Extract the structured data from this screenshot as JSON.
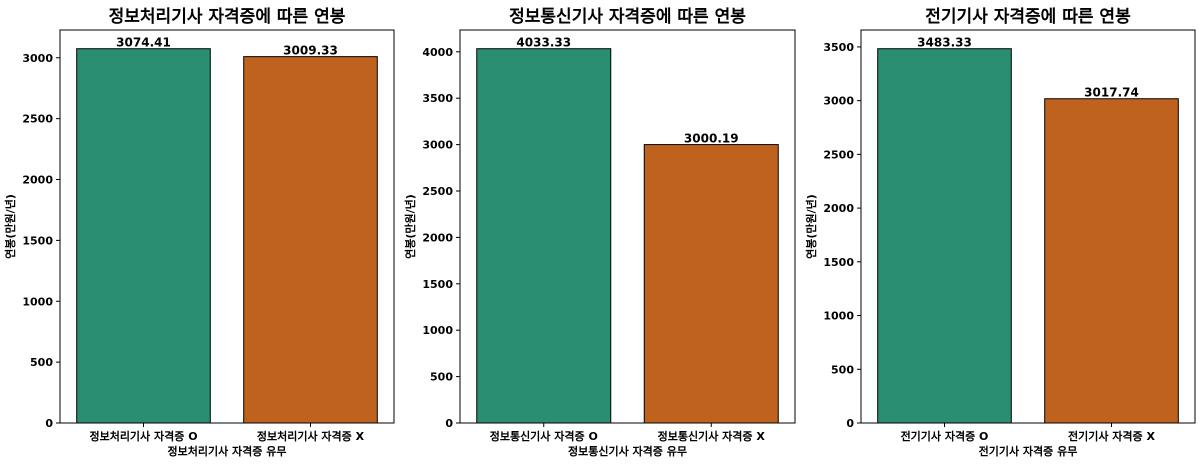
{
  "chart_data": [
    {
      "type": "bar",
      "title": "정보처리기사 자격증에 따른 연봉",
      "xlabel": "정보처리기사 자격증 유무",
      "ylabel": "연봉(만원/년)",
      "categories": [
        "정보처리기사 자격증 O",
        "정보처리기사 자격증 X"
      ],
      "values": [
        3074.41,
        3009.33
      ],
      "value_labels": [
        "3074.41",
        "3009.33"
      ],
      "colors": [
        "#2a8f72",
        "#bf621e"
      ],
      "ylim": [
        0,
        3228.13
      ],
      "yticks": [
        0,
        500,
        1000,
        1500,
        2000,
        2500,
        3000
      ],
      "grid": false
    },
    {
      "type": "bar",
      "title": "정보통신기사 자격증에 따른 연봉",
      "xlabel": "정보통신기사 자격증 유무",
      "ylabel": "연봉(만원/년)",
      "categories": [
        "정보통신기사 자격증 O",
        "정보통신기사 자격증 X"
      ],
      "values": [
        4033.33,
        3000.19
      ],
      "value_labels": [
        "4033.33",
        "3000.19"
      ],
      "colors": [
        "#2a8f72",
        "#bf621e"
      ],
      "ylim": [
        0,
        4235.0
      ],
      "yticks": [
        0,
        500,
        1000,
        1500,
        2000,
        2500,
        3000,
        3500,
        4000
      ],
      "grid": false
    },
    {
      "type": "bar",
      "title": "전기기사 자격증에 따른 연봉",
      "xlabel": "전기기사 자격증 유무",
      "ylabel": "연봉(만원/년)",
      "categories": [
        "전기기사 자격증 O",
        "전기기사 자격증 X"
      ],
      "values": [
        3483.33,
        3017.74
      ],
      "value_labels": [
        "3483.33",
        "3017.74"
      ],
      "colors": [
        "#2a8f72",
        "#bf621e"
      ],
      "ylim": [
        0,
        3657.5
      ],
      "yticks": [
        0,
        500,
        1000,
        1500,
        2000,
        2500,
        3000,
        3500
      ],
      "grid": false
    }
  ]
}
